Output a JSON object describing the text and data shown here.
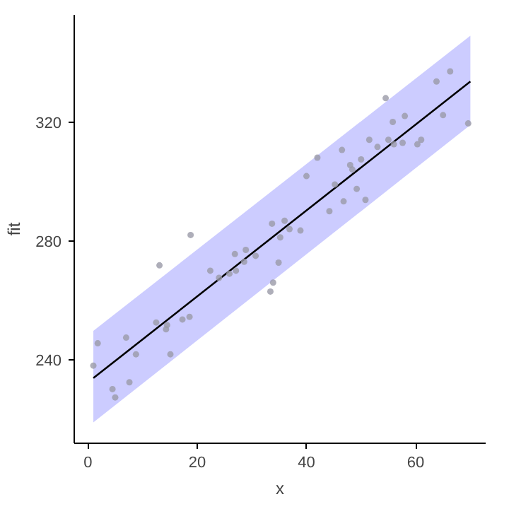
{
  "chart_data": {
    "type": "scatter",
    "xlabel": "x",
    "ylabel": "fit",
    "xlim": [
      -2.5,
      72.8
    ],
    "ylim": [
      212,
      356
    ],
    "xticks": [
      0,
      20,
      40,
      60
    ],
    "yticks": [
      240,
      280,
      320
    ],
    "grid": false,
    "marker": "circle",
    "series": [
      {
        "type": "line",
        "color": "#000000",
        "x": [
          1,
          70
        ],
        "values": [
          233.9,
          333.6
        ],
        "lower": [
          219,
          319
        ],
        "upper": [
          249.8,
          349
        ],
        "marker": "none"
      },
      {
        "color": "#9a9aa8",
        "x": [
          1.0,
          1.8,
          4.5,
          5.0,
          7.0,
          7.6,
          8.8,
          13.1,
          12.5,
          14.5,
          14.3,
          15.1,
          17.3,
          18.6,
          18.8,
          22.4,
          24.0,
          25.9,
          27.1,
          26.9,
          28.9,
          28.6,
          30.7,
          33.7,
          34.9,
          33.9,
          33.4,
          36.0,
          36.9,
          35.2,
          38.9,
          40.0,
          42.0,
          44.2,
          45.2,
          46.5,
          46.8,
          48.0,
          48.4,
          49.2,
          50.0,
          50.8,
          51.5,
          53.0,
          54.5,
          55.0,
          55.8,
          56.0,
          57.6,
          58.0,
          60.3,
          61.0,
          63.8,
          65.0,
          66.3,
          69.6
        ],
        "values": [
          238.1,
          245.6,
          230.2,
          227.4,
          247.5,
          232.5,
          241.9,
          271.8,
          252.6,
          251.7,
          250.3,
          241.9,
          253.6,
          254.5,
          282,
          270,
          267.6,
          269,
          270,
          275.6,
          277,
          273,
          275,
          285.8,
          272.7,
          266,
          263,
          286.8,
          284,
          281.2,
          283.5,
          301.8,
          308,
          290,
          299,
          310.6,
          293.3,
          305.5,
          304,
          297.5,
          307.4,
          293.8,
          314,
          311.6,
          328,
          314,
          320,
          312.5,
          313,
          322,
          312.5,
          314,
          333.6,
          322.3,
          337,
          319.5
        ]
      }
    ]
  }
}
